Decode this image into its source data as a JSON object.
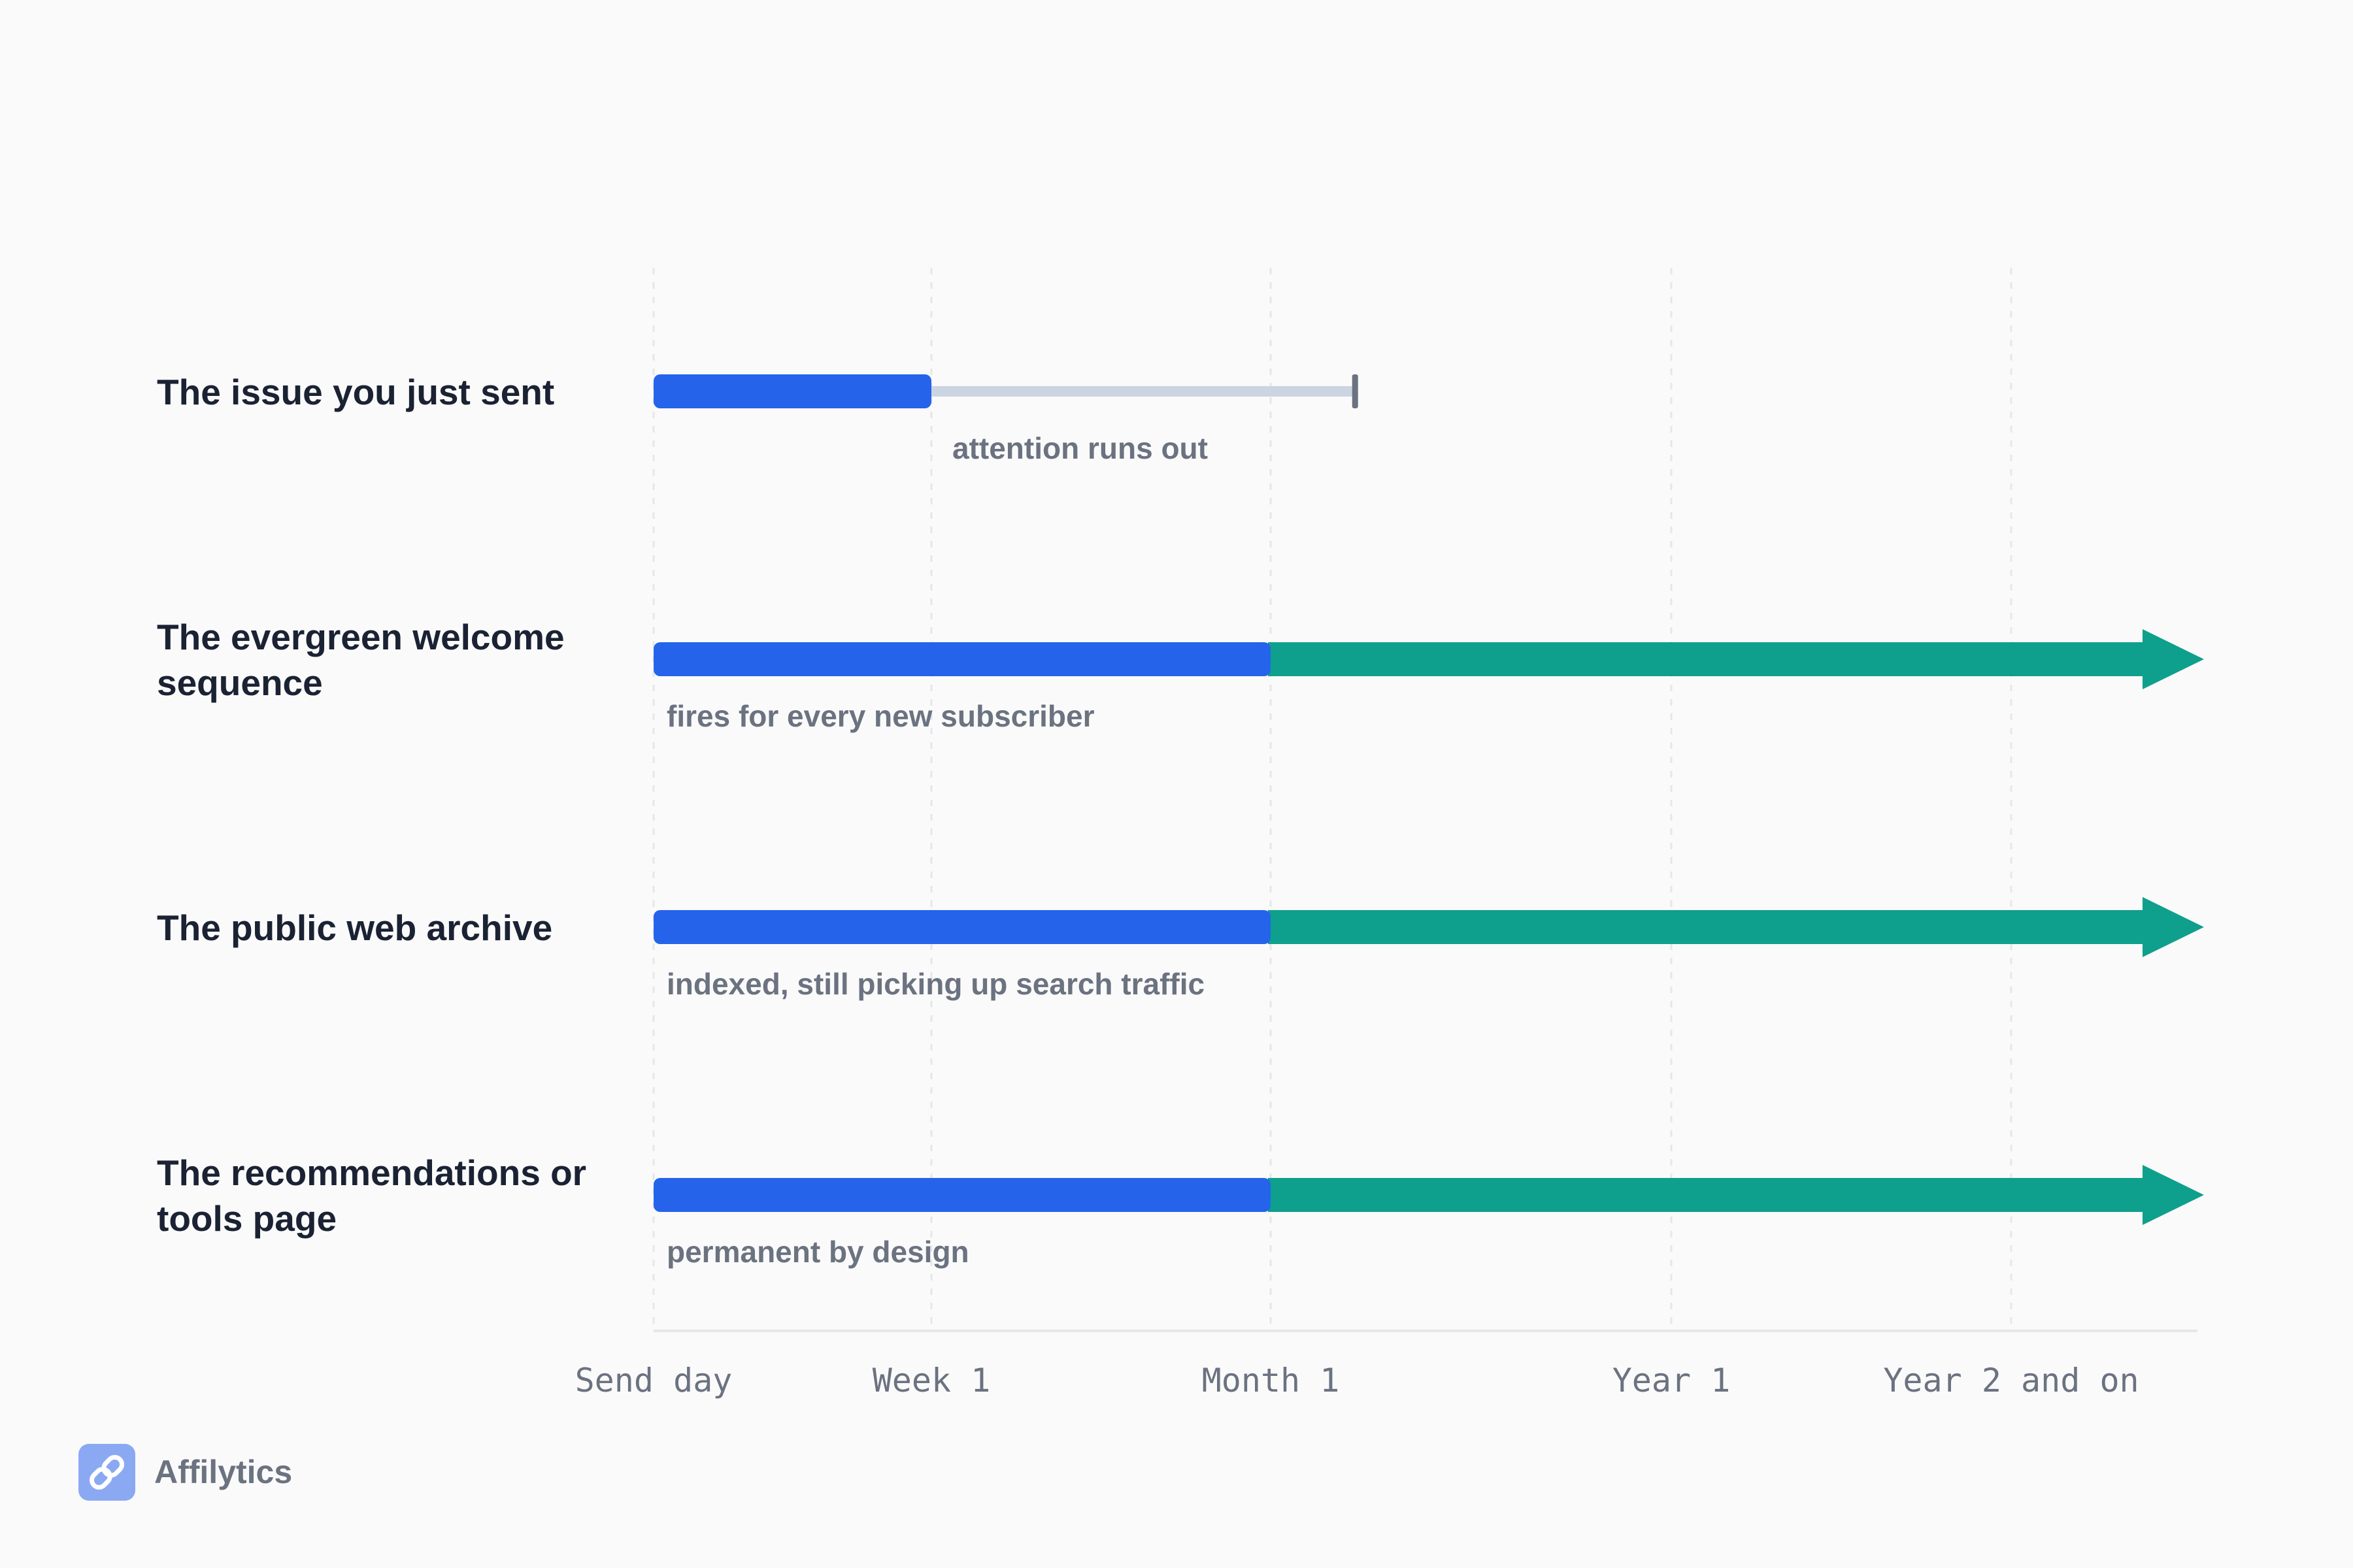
{
  "chart_data": {
    "type": "timeline",
    "x_ticks": [
      "Send day",
      "Week 1",
      "Month 1",
      "Year 1",
      "Year 2 and on"
    ],
    "rows": [
      {
        "label_lines": [
          "The issue you just sent"
        ],
        "active_from": "Send day",
        "active_to": "Week 1",
        "fade_to_fraction_between_month1_and_year1": 0.21,
        "continues": false,
        "annotation": "attention runs out"
      },
      {
        "label_lines": [
          "The evergreen welcome",
          "sequence"
        ],
        "active_from": "Send day",
        "active_to": "Month 1",
        "continues": true,
        "annotation": "fires for every new subscriber"
      },
      {
        "label_lines": [
          "The public web archive"
        ],
        "active_from": "Send day",
        "active_to": "Month 1",
        "continues": true,
        "annotation": "indexed, still picking up search traffic"
      },
      {
        "label_lines": [
          "The recommendations or",
          "tools page"
        ],
        "active_from": "Send day",
        "active_to": "Month 1",
        "continues": true,
        "annotation": "permanent by design"
      }
    ],
    "colors": {
      "initial": "#2563eb",
      "ongoing": "#0ea08c",
      "faded": "#cbd5e1",
      "end_cap": "#6b7280",
      "grid": "#e5e7eb",
      "axis": "#e5e7eb"
    },
    "grid": "vertical-dashed"
  },
  "brand": {
    "name": "Affilytics",
    "icon": "link-icon",
    "icon_color": "#8ba9f2"
  }
}
